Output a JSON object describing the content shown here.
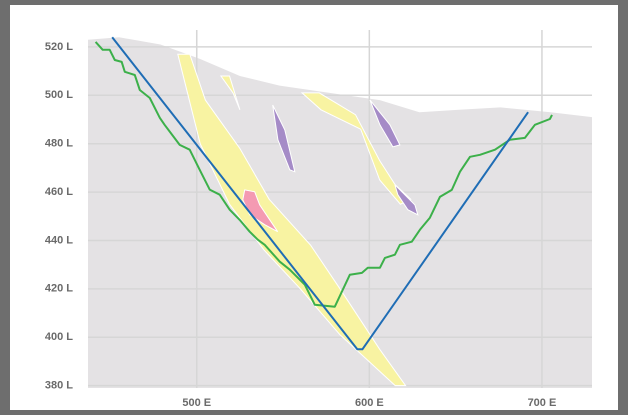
{
  "chart_data": {
    "type": "cross-section",
    "xlim": [
      437,
      729
    ],
    "ylim": [
      379,
      527
    ],
    "xticks": [
      {
        "value": 500,
        "label": "500 E"
      },
      {
        "value": 600,
        "label": "600 E"
      },
      {
        "value": 700,
        "label": "700 E"
      }
    ],
    "yticks": [
      {
        "value": 380,
        "label": "380 L"
      },
      {
        "value": 400,
        "label": "400 L"
      },
      {
        "value": 420,
        "label": "420 L"
      },
      {
        "value": 440,
        "label": "440 L"
      },
      {
        "value": 460,
        "label": "460 L"
      },
      {
        "value": 480,
        "label": "480 L"
      },
      {
        "value": 500,
        "label": "500 L"
      },
      {
        "value": 520,
        "label": "520 L"
      }
    ],
    "grid": true,
    "series": [
      {
        "shape": "area",
        "color": "#e4e2e4",
        "x": [
          437,
          455,
          479,
          502,
          525,
          548,
          577,
          606,
          629,
          652,
          676,
          705,
          729
        ],
        "y": [
          523,
          524,
          521,
          515,
          508,
          504,
          501,
          498,
          493,
          494,
          495,
          493,
          491
        ]
      },
      {
        "shape": "polygon",
        "color": "#f8f3a2",
        "x": [
          489,
          496,
          505,
          525,
          542,
          566,
          583,
          606,
          621,
          615,
          583,
          560,
          539,
          519,
          502
        ],
        "y": [
          517,
          517,
          498,
          478,
          457,
          438,
          420,
          395,
          380,
          380,
          401,
          420,
          436,
          455,
          480
        ]
      },
      {
        "shape": "polygon",
        "color": "#f8f3a2",
        "x": [
          514,
          519,
          525,
          521
        ],
        "y": [
          508,
          508,
          494,
          501
        ]
      },
      {
        "shape": "polygon",
        "color": "#f8f3a2",
        "x": [
          561,
          571,
          592,
          606,
          615,
          624,
          618,
          606,
          595,
          572
        ],
        "y": [
          501,
          501,
          492,
          473,
          463,
          457,
          455,
          465,
          486,
          494
        ]
      },
      {
        "shape": "polygon",
        "color": "#a58bc7",
        "x": [
          544,
          551,
          556.8,
          553.9,
          547
        ],
        "y": [
          496,
          485.7,
          468.4,
          469.2,
          481.6
        ]
      },
      {
        "shape": "polygon",
        "color": "#a58bc7",
        "x": [
          600.3,
          611.9,
          617.7,
          613.6,
          606.1
        ],
        "y": [
          498.1,
          487.8,
          479.5,
          478.7,
          487.8
        ]
      },
      {
        "shape": "polygon",
        "color": "#a58bc7",
        "x": [
          614.8,
          626.4,
          628.1,
          622.3,
          616.5
        ],
        "y": [
          463,
          454.7,
          450.6,
          452.7,
          458.9
        ]
      },
      {
        "shape": "polygon",
        "color": "#f49ab2",
        "x": [
          527.8,
          533.6,
          536.5,
          546.9,
          539.4,
          530.7,
          526.7
        ],
        "y": [
          460.9,
          460.1,
          454.7,
          443.6,
          446.5,
          450.6,
          456.8
        ]
      },
      {
        "shape": "line",
        "color": "#3cb04a",
        "x": [
          441.4,
          445.5,
          449.6,
          452.5,
          456.5,
          458.3,
          464.1,
          467,
          472.8,
          478.6,
          481.4,
          490.1,
          495.9,
          501.7,
          507.5,
          513.3,
          519.1,
          524.9,
          530.7,
          535.4,
          539.4,
          548.1,
          553.9,
          562.6,
          568.4,
          580,
          588.7,
          595.7,
          599.1,
          606.1,
          609,
          614.8,
          617.7,
          624.6,
          629.3,
          635.1,
          640.9,
          647.8,
          652.5,
          658.3,
          664.1,
          672.8,
          681.4,
          690.1,
          695.9,
          704.6,
          705.8
        ],
        "y": [
          522.1,
          518.8,
          518.8,
          514.6,
          513.8,
          509.7,
          508.4,
          502.2,
          498.9,
          490.7,
          487.8,
          479.5,
          477.5,
          469.2,
          461,
          458.9,
          452.7,
          448.5,
          443.6,
          440.3,
          438.2,
          431.2,
          427.9,
          421.7,
          413.4,
          412.6,
          425.8,
          426.6,
          428.7,
          428.7,
          432.8,
          434.1,
          438.2,
          439.5,
          444.4,
          449.4,
          458,
          460.9,
          468.4,
          474.6,
          475.4,
          477.5,
          481.6,
          482.4,
          487.8,
          490.2,
          491.9
        ]
      },
      {
        "shape": "line",
        "color": "#1f6db5",
        "x": [
          451,
          593,
          596,
          692
        ],
        "y": [
          524,
          395,
          395,
          493
        ]
      }
    ]
  }
}
